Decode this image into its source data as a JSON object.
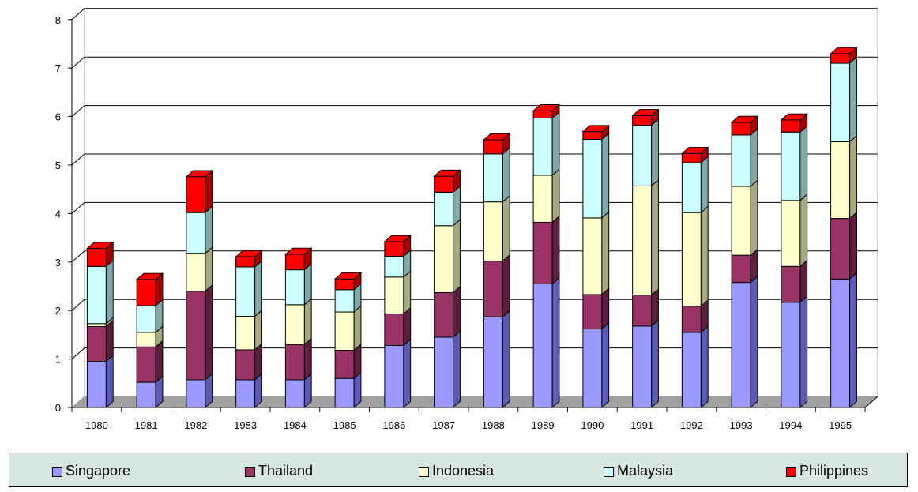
{
  "chart_data": {
    "type": "bar",
    "stacked": true,
    "three_d": true,
    "title": "",
    "xlabel": "",
    "ylabel": "",
    "ylim": [
      0,
      8
    ],
    "yticks": [
      "0",
      "1",
      "2",
      "3",
      "4",
      "5",
      "6",
      "7",
      "8"
    ],
    "grid": true,
    "legend_position": "bottom",
    "categories": [
      "1980",
      "1981",
      "1982",
      "1983",
      "1984",
      "1985",
      "1986",
      "1987",
      "1988",
      "1989",
      "1990",
      "1991",
      "1992",
      "1993",
      "1994",
      "1995"
    ],
    "series": [
      {
        "name": "Singapore",
        "color": "#9999ff",
        "side": "#5c5cb8",
        "values": [
          0.95,
          0.52,
          0.57,
          0.57,
          0.57,
          0.6,
          1.28,
          1.45,
          1.87,
          2.55,
          1.62,
          1.68,
          1.55,
          2.58,
          2.17,
          2.65
        ]
      },
      {
        "name": "Thailand",
        "color": "#993366",
        "side": "#5e1f3f",
        "values": [
          0.72,
          0.73,
          1.83,
          0.62,
          0.73,
          0.58,
          0.65,
          0.92,
          1.15,
          1.27,
          0.71,
          0.64,
          0.54,
          0.56,
          0.74,
          1.25
        ]
      },
      {
        "name": "Indonesia",
        "color": "#ffffcc",
        "side": "#a8a880",
        "values": [
          0.06,
          0.3,
          0.78,
          0.69,
          0.82,
          0.79,
          0.76,
          1.38,
          1.22,
          0.97,
          1.58,
          2.25,
          1.93,
          1.42,
          1.36,
          1.58
        ]
      },
      {
        "name": "Malaysia",
        "color": "#ccffff",
        "side": "#80a8a8",
        "values": [
          1.18,
          0.55,
          0.84,
          1.02,
          0.72,
          0.46,
          0.43,
          0.69,
          0.99,
          1.18,
          1.62,
          1.25,
          1.03,
          1.06,
          1.41,
          1.62
        ]
      },
      {
        "name": "Philippines",
        "color": "#ff0000",
        "side": "#a80000",
        "values": [
          0.37,
          0.54,
          0.74,
          0.21,
          0.32,
          0.22,
          0.3,
          0.33,
          0.29,
          0.15,
          0.16,
          0.2,
          0.19,
          0.26,
          0.25,
          0.2
        ]
      }
    ]
  }
}
